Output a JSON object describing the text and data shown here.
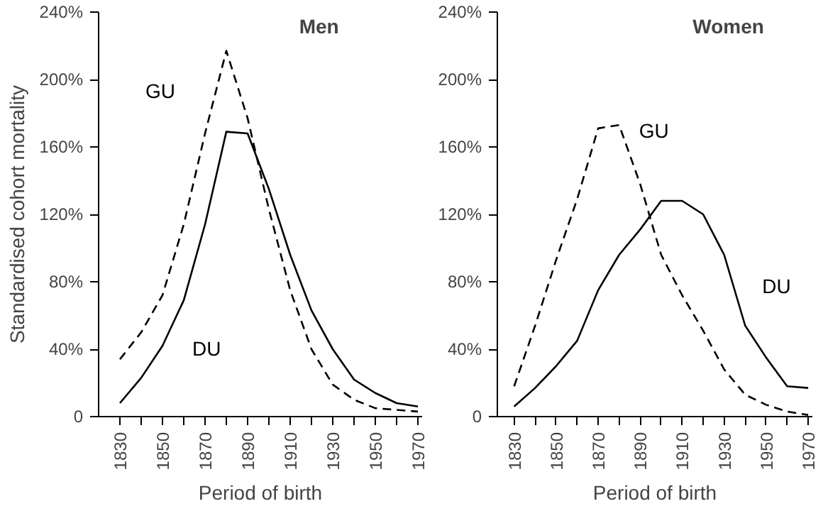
{
  "chart_data": [
    {
      "type": "line",
      "title": "Men",
      "xlabel": "Period of birth",
      "ylabel": "Standardised cohort mortality",
      "x": [
        1830,
        1840,
        1850,
        1860,
        1870,
        1880,
        1890,
        1900,
        1910,
        1920,
        1930,
        1940,
        1950,
        1960,
        1970
      ],
      "series": [
        {
          "name": "GU",
          "color": "#000000",
          "line_style": "dashed",
          "values": [
            34,
            50,
            72,
            114,
            168,
            217,
            177,
            123,
            75,
            40,
            19,
            10,
            5,
            4,
            3
          ]
        },
        {
          "name": "DU",
          "color": "#000000",
          "line_style": "solid",
          "values": [
            8,
            23,
            42,
            69,
            114,
            169,
            168,
            135,
            96,
            63,
            40,
            22,
            14,
            8,
            6
          ]
        }
      ],
      "xlim": [
        1820,
        1972
      ],
      "ylim": [
        0,
        240
      ],
      "xticks": [
        1830,
        {
          "value": 1840,
          "label": null
        },
        1850,
        {
          "value": 1860,
          "label": null
        },
        1870,
        {
          "value": 1880,
          "label": null
        },
        1890,
        {
          "value": 1900,
          "label": null
        },
        1910,
        {
          "value": 1920,
          "label": null
        },
        1930,
        {
          "value": 1940,
          "label": null
        },
        1950,
        {
          "value": 1960,
          "label": null
        },
        1970
      ],
      "yticks": [
        0,
        {
          "value": 40,
          "label": "40%"
        },
        {
          "value": 80,
          "label": "80%"
        },
        {
          "value": 120,
          "label": "120%"
        },
        {
          "value": 160,
          "label": "160%"
        },
        {
          "value": 200,
          "label": "200%"
        },
        {
          "value": 240,
          "label": "240%"
        }
      ],
      "grid": false,
      "legend": false,
      "marker": "none"
    },
    {
      "type": "line",
      "title": "Women",
      "xlabel": "Period of birth",
      "x": [
        1830,
        1840,
        1850,
        1860,
        1870,
        1880,
        1890,
        1900,
        1910,
        1920,
        1930,
        1940,
        1950,
        1960,
        1970
      ],
      "series": [
        {
          "name": "GU",
          "color": "#000000",
          "line_style": "dashed",
          "values": [
            18,
            54,
            93,
            129,
            171,
            173,
            138,
            96,
            72,
            51,
            28,
            13,
            7,
            3,
            1
          ]
        },
        {
          "name": "DU",
          "color": "#000000",
          "line_style": "solid",
          "values": [
            6,
            17,
            30,
            45,
            75,
            96,
            111,
            128,
            128,
            120,
            96,
            54,
            35,
            18,
            17
          ]
        }
      ],
      "xlim": [
        1822,
        1972
      ],
      "ylim": [
        0,
        240
      ],
      "xticks": [
        1830,
        {
          "value": 1840,
          "label": null
        },
        1850,
        {
          "value": 1860,
          "label": null
        },
        1870,
        {
          "value": 1880,
          "label": null
        },
        1890,
        {
          "value": 1900,
          "label": null
        },
        1910,
        {
          "value": 1920,
          "label": null
        },
        1930,
        {
          "value": 1940,
          "label": null
        },
        1950,
        {
          "value": 1960,
          "label": null
        },
        1970
      ],
      "yticks": [
        0,
        {
          "value": 40,
          "label": "40%"
        },
        {
          "value": 80,
          "label": "80%"
        },
        {
          "value": 120,
          "label": "120%"
        },
        {
          "value": 160,
          "label": "160%"
        },
        {
          "value": 200,
          "label": "200%"
        },
        {
          "value": 240,
          "label": "240%"
        }
      ],
      "grid": false,
      "legend": false,
      "marker": "none"
    }
  ]
}
